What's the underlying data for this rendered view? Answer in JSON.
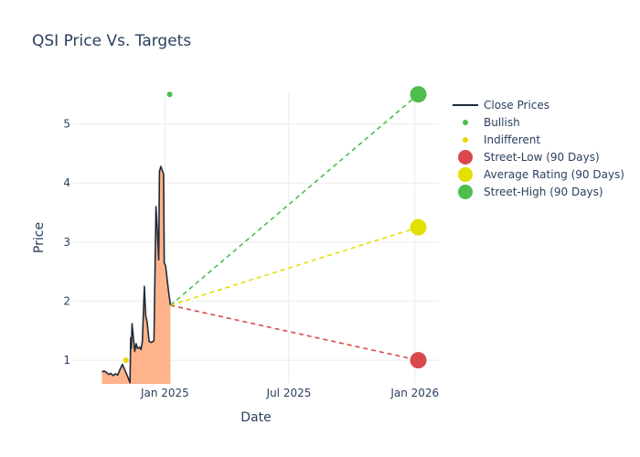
{
  "chart_data": {
    "type": "line",
    "title": "QSI Price Vs. Targets",
    "xlabel": "Date",
    "ylabel": "Price",
    "xlim": [
      "2024-08-20",
      "2026-02-05"
    ],
    "ylim": [
      0.6,
      5.55
    ],
    "x_ticks": [
      {
        "date": "2025-01-01",
        "label": "Jan 2025"
      },
      {
        "date": "2025-07-01",
        "label": "Jul 2025"
      },
      {
        "date": "2026-01-01",
        "label": "Jan 2026"
      }
    ],
    "y_ticks": [
      1,
      2,
      3,
      4,
      5
    ],
    "grid": true,
    "legend_position": "right",
    "series": [
      {
        "name": "Close Prices",
        "kind": "line",
        "color": "#1f2a3a",
        "fill_color": "#ffb38a",
        "points": [
          [
            "2024-10-01",
            0.8
          ],
          [
            "2024-10-04",
            0.82
          ],
          [
            "2024-10-08",
            0.79
          ],
          [
            "2024-10-11",
            0.76
          ],
          [
            "2024-10-14",
            0.78
          ],
          [
            "2024-10-17",
            0.74
          ],
          [
            "2024-10-21",
            0.77
          ],
          [
            "2024-10-24",
            0.75
          ],
          [
            "2024-10-28",
            0.86
          ],
          [
            "2024-10-31",
            0.93
          ],
          [
            "2024-11-04",
            0.82
          ],
          [
            "2024-11-07",
            0.74
          ],
          [
            "2024-11-11",
            0.62
          ],
          [
            "2024-11-12",
            1.38
          ],
          [
            "2024-11-13",
            1.2
          ],
          [
            "2024-11-14",
            1.62
          ],
          [
            "2024-11-18",
            1.15
          ],
          [
            "2024-11-20",
            1.28
          ],
          [
            "2024-11-22",
            1.2
          ],
          [
            "2024-11-25",
            1.22
          ],
          [
            "2024-11-27",
            1.18
          ],
          [
            "2024-11-29",
            1.32
          ],
          [
            "2024-12-02",
            2.25
          ],
          [
            "2024-12-04",
            1.75
          ],
          [
            "2024-12-06",
            1.65
          ],
          [
            "2024-12-09",
            1.32
          ],
          [
            "2024-12-12",
            1.3
          ],
          [
            "2024-12-16",
            1.33
          ],
          [
            "2024-12-19",
            3.6
          ],
          [
            "2024-12-20",
            3.4
          ],
          [
            "2024-12-23",
            2.7
          ],
          [
            "2024-12-24",
            4.2
          ],
          [
            "2024-12-26",
            4.28
          ],
          [
            "2024-12-30",
            4.15
          ],
          [
            "2024-12-31",
            2.65
          ],
          [
            "2025-01-02",
            2.6
          ],
          [
            "2025-01-06",
            2.2
          ],
          [
            "2025-01-09",
            1.93
          ]
        ]
      },
      {
        "name": "Bullish",
        "kind": "marker",
        "color": "#4dbd4d",
        "points": [
          [
            "2025-01-08",
            5.5
          ]
        ]
      },
      {
        "name": "Indifferent",
        "kind": "marker",
        "color": "#e6d800",
        "points": [
          [
            "2024-11-05",
            1.0
          ]
        ]
      },
      {
        "name": "Street-Low (90 Days)",
        "kind": "target",
        "color": "#d9484d",
        "points": [
          [
            "2025-01-09",
            1.93
          ],
          [
            "2026-01-06",
            1.0
          ]
        ]
      },
      {
        "name": "Average Rating (90 Days)",
        "kind": "target",
        "color": "#e3e000",
        "points": [
          [
            "2025-01-09",
            1.93
          ],
          [
            "2026-01-06",
            3.25
          ]
        ]
      },
      {
        "name": "Street-High (90 Days)",
        "kind": "target",
        "color": "#4dbd4d",
        "points": [
          [
            "2025-01-09",
            1.93
          ],
          [
            "2026-01-06",
            5.5
          ]
        ]
      }
    ]
  }
}
